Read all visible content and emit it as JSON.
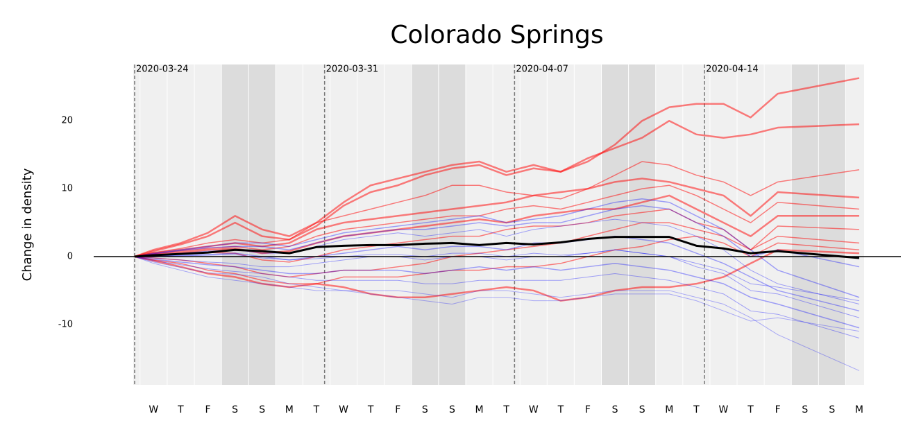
{
  "chart_data": {
    "type": "line",
    "title": "Colorado Springs",
    "ylabel": "Change in density",
    "x": [
      0,
      0.7,
      1.7,
      2.7,
      3.7,
      4.7,
      5.7,
      6.7,
      7.7,
      8.7,
      9.7,
      10.7,
      11.7,
      12.7,
      13.7,
      14.7,
      15.7,
      16.7,
      17.7,
      18.7,
      19.7,
      20.7,
      21.7,
      22.7,
      23.7,
      26.7
    ],
    "xlim": [
      -0.05,
      26.88
    ],
    "xticks": [
      {
        "value": 0.7,
        "label": "W"
      },
      {
        "value": 1.7,
        "label": "T"
      },
      {
        "value": 2.7,
        "label": "F"
      },
      {
        "value": 3.7,
        "label": "S"
      },
      {
        "value": 4.7,
        "label": "S"
      },
      {
        "value": 5.7,
        "label": "M"
      },
      {
        "value": 6.7,
        "label": "T"
      },
      {
        "value": 7.7,
        "label": "W"
      },
      {
        "value": 8.7,
        "label": "T"
      },
      {
        "value": 9.7,
        "label": "F"
      },
      {
        "value": 10.7,
        "label": "S"
      },
      {
        "value": 11.7,
        "label": "S"
      },
      {
        "value": 12.7,
        "label": "M"
      },
      {
        "value": 13.7,
        "label": "T"
      },
      {
        "value": 14.7,
        "label": "W"
      },
      {
        "value": 15.7,
        "label": "T"
      },
      {
        "value": 16.7,
        "label": "F"
      },
      {
        "value": 17.7,
        "label": "S"
      },
      {
        "value": 18.7,
        "label": "S"
      },
      {
        "value": 19.7,
        "label": "M"
      },
      {
        "value": 20.7,
        "label": "T"
      },
      {
        "value": 21.7,
        "label": "W"
      },
      {
        "value": 22.7,
        "label": "T"
      },
      {
        "value": 23.7,
        "label": "F"
      },
      {
        "value": 24.7,
        "label": "S"
      },
      {
        "value": 25.7,
        "label": "S"
      },
      {
        "value": 26.7,
        "label": "M"
      }
    ],
    "weekend_bands": [
      [
        3.2,
        5.2
      ],
      [
        10.2,
        12.2
      ],
      [
        17.2,
        19.2
      ],
      [
        24.2,
        26.2
      ]
    ],
    "vlines": [
      {
        "value": 0,
        "label": "2020-03-24"
      },
      {
        "value": 7,
        "label": "2020-03-31"
      },
      {
        "value": 14,
        "label": "2020-04-07"
      },
      {
        "value": 21,
        "label": "2020-04-14"
      }
    ],
    "ylim": [
      -18.9,
      28.3
    ],
    "yticks": [
      -10,
      0,
      10,
      20
    ],
    "hline": 0,
    "series": [
      {
        "color": "#ff0000",
        "width": 2.5,
        "opacity": 0.5,
        "values": [
          0,
          1,
          2,
          3.5,
          6,
          4,
          3,
          5,
          8,
          10.5,
          11.5,
          12.5,
          13.5,
          14,
          12.5,
          13.5,
          12.5,
          14,
          16.5,
          20,
          22,
          22.5,
          22.5,
          20.5,
          24,
          26.3
        ]
      },
      {
        "color": "#ff0000",
        "width": 2.5,
        "opacity": 0.5,
        "values": [
          0,
          0.8,
          1.8,
          3,
          5,
          3,
          2.5,
          4.5,
          7.5,
          9.5,
          10.5,
          12,
          13,
          13.5,
          12,
          13,
          12.5,
          14.5,
          16,
          17.5,
          20,
          18,
          17.5,
          18,
          19,
          19.5
        ]
      },
      {
        "color": "#ff0000",
        "width": 1.5,
        "opacity": 0.5,
        "values": [
          0,
          0.6,
          1.2,
          2,
          2.5,
          2,
          2.5,
          5,
          6,
          7,
          8,
          9,
          10.5,
          10.5,
          9.5,
          9,
          8.5,
          10,
          12,
          14,
          13.5,
          12,
          11,
          9,
          11,
          12.8
        ]
      },
      {
        "color": "#ff0000",
        "width": 2.5,
        "opacity": 0.5,
        "values": [
          0,
          0.5,
          1,
          1.5,
          2,
          1.5,
          2,
          4,
          5,
          5.5,
          6,
          6.5,
          7,
          7.5,
          8,
          9,
          9.5,
          10,
          11,
          11.5,
          11,
          10,
          9,
          6,
          9.5,
          8.7
        ]
      },
      {
        "color": "#ff0000",
        "width": 1.5,
        "opacity": 0.5,
        "values": [
          0,
          0.4,
          0.8,
          1.2,
          1.5,
          1,
          1.5,
          3,
          4,
          4.5,
          5,
          5.5,
          6,
          6,
          7,
          7.5,
          7,
          8,
          9,
          10,
          10.5,
          9,
          7,
          5,
          8,
          7
        ]
      },
      {
        "color": "#ff0000",
        "width": 2.5,
        "opacity": 0.5,
        "values": [
          0,
          0.3,
          0.6,
          1,
          1.2,
          0.5,
          0.8,
          2,
          3,
          3.5,
          4,
          4.5,
          5,
          5.5,
          5,
          6,
          6.5,
          7,
          7,
          8,
          9,
          7,
          5,
          3,
          6,
          6
        ]
      },
      {
        "color": "#ff0000",
        "width": 1.5,
        "opacity": 0.5,
        "values": [
          0,
          0.2,
          0.4,
          0.6,
          0.5,
          -0.5,
          -0.8,
          0,
          1,
          1.5,
          2,
          2.5,
          3,
          3,
          4,
          4.5,
          4.5,
          5,
          6,
          6.5,
          7,
          5,
          4,
          1,
          4.5,
          4
        ]
      },
      {
        "color": "#ff0000",
        "width": 1.5,
        "opacity": 0.5,
        "values": [
          0,
          -0.2,
          -0.5,
          -1,
          -1.5,
          -2.5,
          -3,
          -2.5,
          -2,
          -2,
          -1.5,
          -1,
          0,
          0.5,
          1,
          1.5,
          2,
          3,
          4,
          5,
          5,
          4,
          3,
          1,
          3,
          2
        ]
      },
      {
        "color": "#ff0000",
        "width": 1.5,
        "opacity": 0.5,
        "values": [
          0,
          -0.5,
          -1,
          -2,
          -2.5,
          -3.5,
          -4,
          -4,
          -3,
          -3,
          -3,
          -2.5,
          -2,
          -2,
          -1.5,
          -1.5,
          -1,
          0,
          1,
          1.5,
          2.5,
          3,
          2,
          0,
          2,
          1
        ]
      },
      {
        "color": "#ff0000",
        "width": 2.5,
        "opacity": 0.5,
        "values": [
          0,
          -0.6,
          -1.5,
          -2.5,
          -3,
          -4,
          -4.5,
          -4,
          -4.5,
          -5.5,
          -6,
          -6,
          -5.5,
          -5,
          -4.5,
          -5,
          -6.5,
          -6,
          -5,
          -4.5,
          -4.5,
          -4,
          -3,
          -1,
          1,
          0.5
        ]
      },
      {
        "color": "#0000ff",
        "width": 1.5,
        "opacity": 0.35,
        "values": [
          0,
          0.5,
          1,
          1.5,
          2,
          2,
          1.5,
          2.5,
          3.5,
          4,
          4.5,
          5,
          5.5,
          6,
          5,
          5.5,
          6,
          7,
          8,
          8.5,
          8,
          6,
          4,
          1,
          -2,
          -6
        ]
      },
      {
        "color": "#0000ff",
        "width": 1,
        "opacity": 0.35,
        "values": [
          0,
          0.3,
          0.5,
          0.8,
          1,
          0.5,
          0.5,
          1.5,
          2.5,
          3,
          3.5,
          3,
          3.5,
          4,
          3,
          4,
          4.5,
          5,
          5.5,
          5,
          4.5,
          3,
          1,
          -2,
          -4,
          -7
        ]
      },
      {
        "color": "#0000ff",
        "width": 1.5,
        "opacity": 0.35,
        "values": [
          0,
          0,
          0.2,
          0.3,
          0.5,
          0,
          -0.5,
          0,
          0.5,
          1,
          1.5,
          1,
          1.5,
          1.5,
          1,
          2,
          2,
          2.5,
          3,
          2.5,
          2,
          0.5,
          -1,
          -3,
          -5,
          -8
        ]
      },
      {
        "color": "#0000ff",
        "width": 1,
        "opacity": 0.35,
        "values": [
          0,
          -0.2,
          -0.5,
          -0.8,
          -1,
          -1.5,
          -1.5,
          -1,
          -0.5,
          0,
          0,
          -0.5,
          0,
          0,
          -0.5,
          0,
          0,
          0.5,
          1,
          0.5,
          0,
          -1.5,
          -2.5,
          -5,
          -5.5,
          -9
        ]
      },
      {
        "color": "#0000ff",
        "width": 1.5,
        "opacity": 0.35,
        "values": [
          0,
          -0.4,
          -0.8,
          -1.2,
          -1.5,
          -2,
          -2.5,
          -2.5,
          -2,
          -2,
          -2,
          -2.5,
          -2,
          -1.5,
          -2,
          -1.5,
          -2,
          -1.5,
          -1,
          -1.5,
          -2,
          -3,
          -4,
          -6,
          -7,
          -10.5
        ]
      },
      {
        "color": "#0000ff",
        "width": 1,
        "opacity": 0.35,
        "values": [
          0,
          -0.6,
          -1.2,
          -1.8,
          -2.2,
          -2.5,
          -3,
          -3.5,
          -3.5,
          -3.5,
          -3.5,
          -4,
          -4,
          -3.5,
          -3.5,
          -3.5,
          -3.5,
          -3,
          -2.5,
          -3,
          -3.5,
          -4.5,
          -5.5,
          -8,
          -8.5,
          -12
        ]
      },
      {
        "color": "#0000ff",
        "width": 1,
        "opacity": 0.3,
        "values": [
          0,
          -0.8,
          -1.6,
          -2.4,
          -2.6,
          -3,
          -4,
          -4.5,
          -5,
          -5,
          -5,
          -5.5,
          -6,
          -5,
          -5,
          -5.5,
          -6,
          -5.5,
          -5,
          -5,
          -5,
          -6,
          -7,
          -9,
          -11.5,
          -16.8
        ]
      },
      {
        "color": "#0000ff",
        "width": 1,
        "opacity": 0.3,
        "values": [
          0,
          -1,
          -2,
          -3,
          -3.5,
          -4,
          -4.5,
          -5,
          -5,
          -5.5,
          -6,
          -6.5,
          -7,
          -6,
          -6,
          -6.5,
          -6.5,
          -6,
          -5.5,
          -5.5,
          -5.5,
          -6.5,
          -8,
          -9.5,
          -9,
          -11
        ]
      },
      {
        "color": "#0000ff",
        "width": 1.5,
        "opacity": 0.35,
        "values": [
          0,
          0.4,
          0.9,
          1.3,
          1.5,
          1.5,
          1,
          2,
          3,
          3.5,
          4,
          4,
          4.5,
          5,
          4.5,
          5,
          5,
          6,
          7,
          7.5,
          7,
          5,
          3,
          0,
          1,
          -1.5
        ]
      },
      {
        "color": "#0000ff",
        "width": 1,
        "opacity": 0.35,
        "values": [
          0,
          0.1,
          0.1,
          0.2,
          0.3,
          -0.2,
          -0.5,
          -0.3,
          0,
          0.3,
          0.3,
          0,
          0.5,
          0.5,
          0,
          0.5,
          0.2,
          0.5,
          1,
          0.5,
          0,
          -1,
          -2,
          -4,
          -4.5,
          -6.5
        ]
      },
      {
        "color": "#000000",
        "width": 3,
        "opacity": 1,
        "values": [
          0,
          0.2,
          0.4,
          0.6,
          1.0,
          0.8,
          0.5,
          1.4,
          1.6,
          1.7,
          1.7,
          1.9,
          2.0,
          1.7,
          2.0,
          1.8,
          2.1,
          2.6,
          2.9,
          2.9,
          2.9,
          1.6,
          1.2,
          0.5,
          0.8,
          -0.2
        ]
      }
    ]
  }
}
